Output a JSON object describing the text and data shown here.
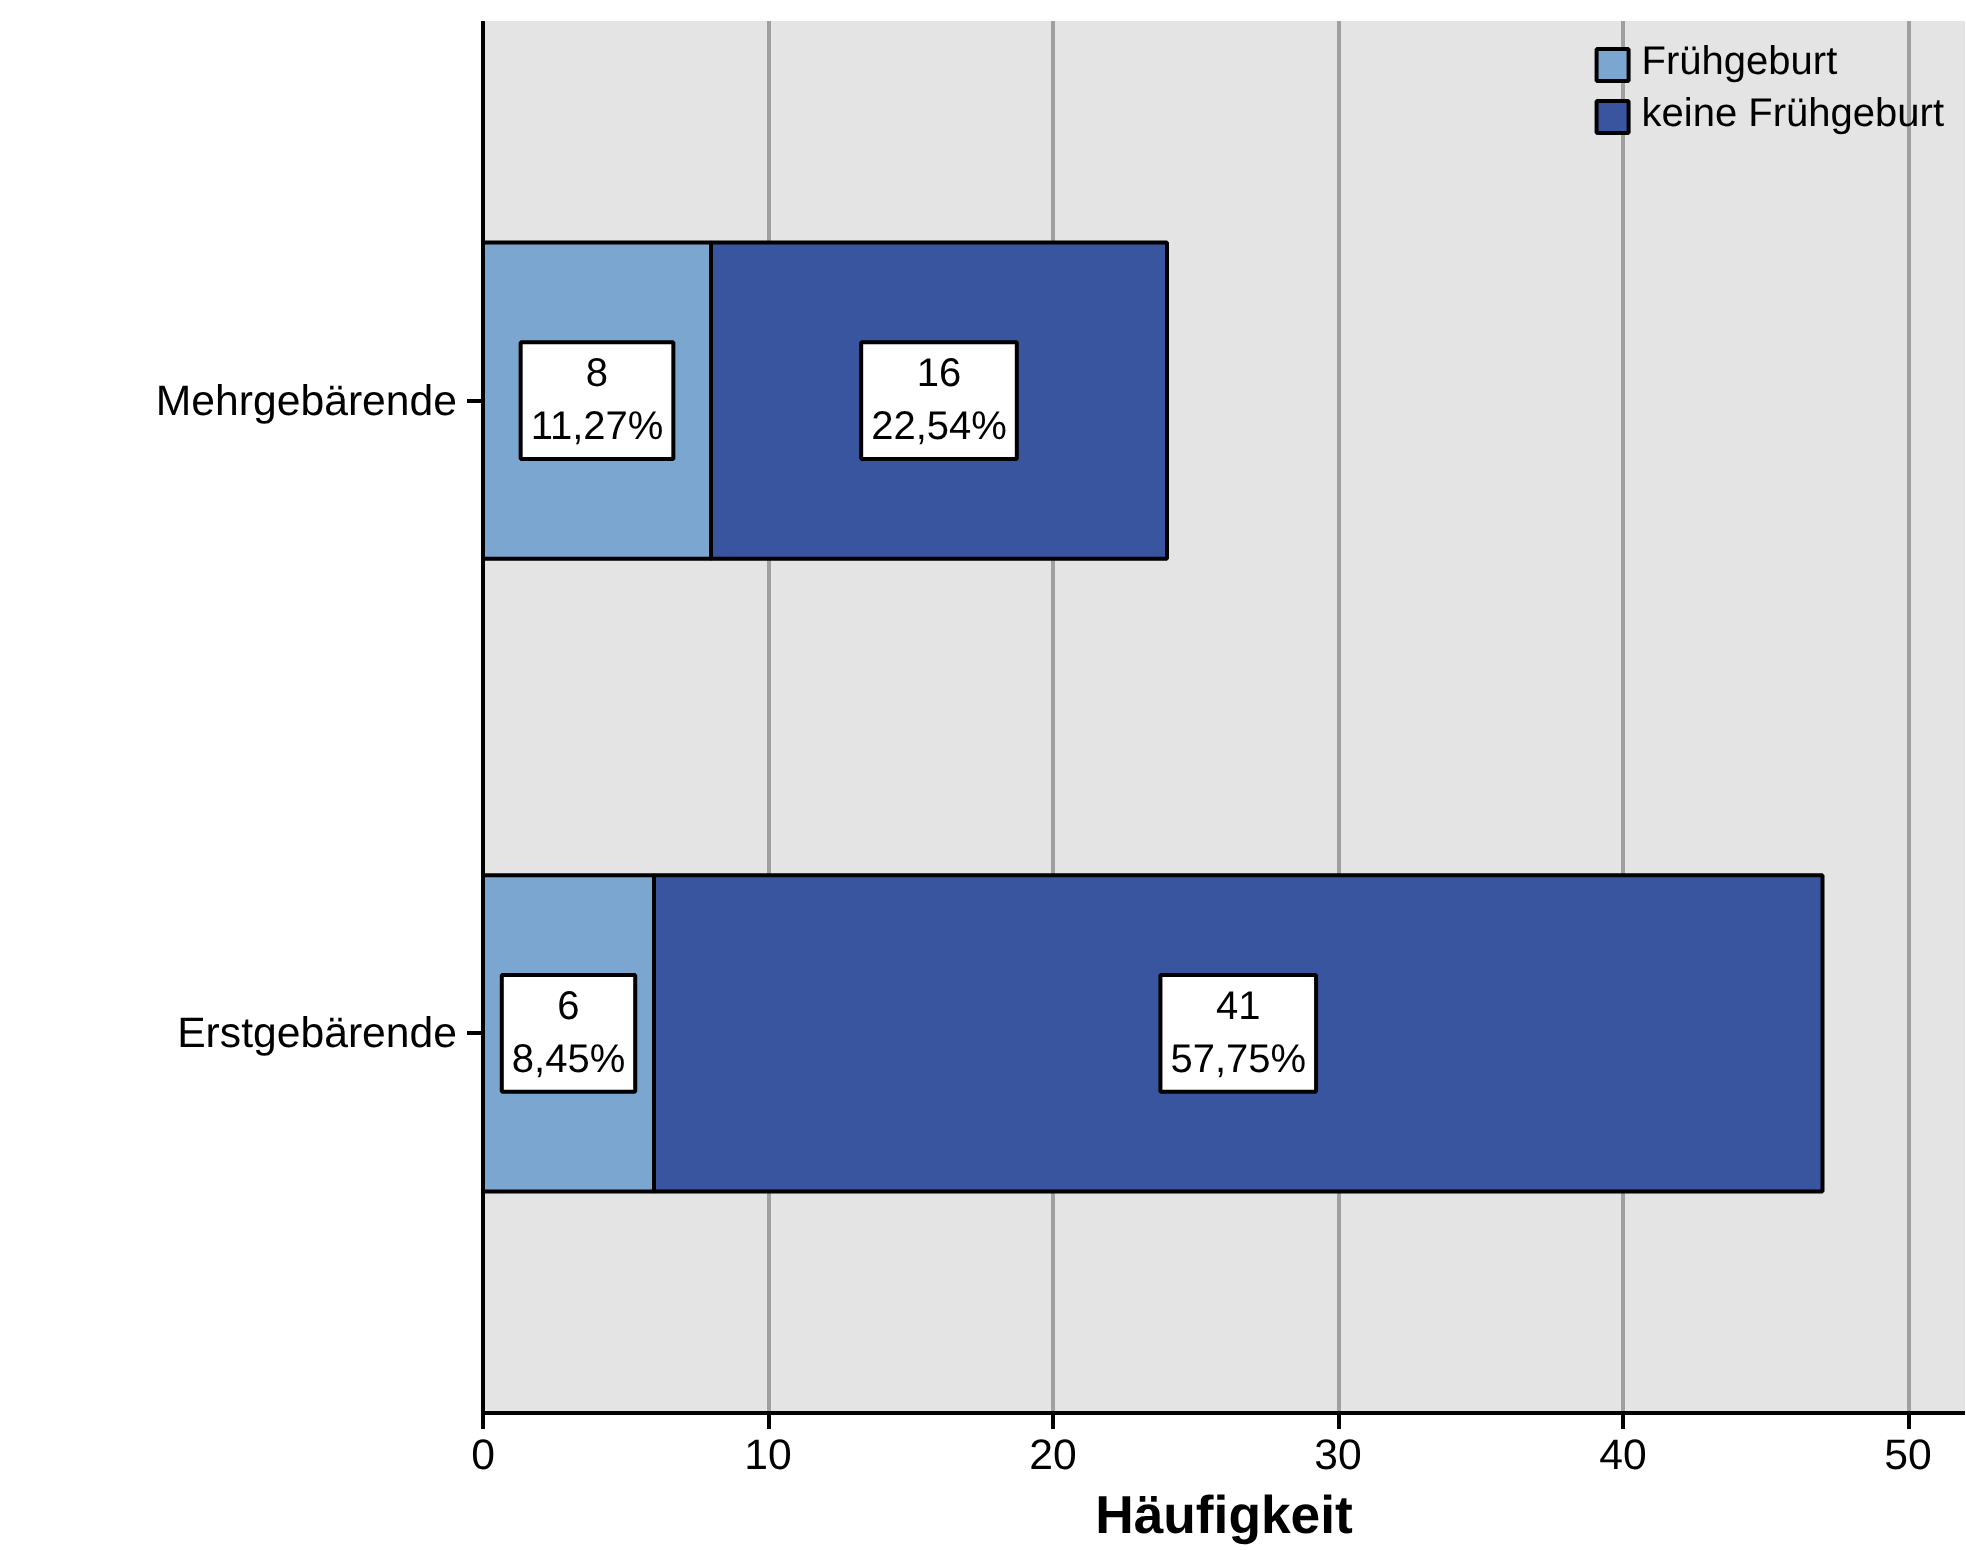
{
  "chart_data": {
    "type": "bar",
    "orientation": "horizontal",
    "stacked": true,
    "xlabel": "Häufigkeit",
    "categories": [
      "Mehrgebärende",
      "Erstgebärende"
    ],
    "series": [
      {
        "name": "Frühgeburt",
        "color": "#7aa6d0",
        "values": [
          8,
          6
        ],
        "value_labels": [
          "8\n11,27%",
          "6\n8,45%"
        ]
      },
      {
        "name": "keine Frühgeburt",
        "color": "#3a55a0",
        "values": [
          16,
          41
        ],
        "value_labels": [
          "16\n22,54%",
          "41\n57,75%"
        ]
      }
    ],
    "xlim": [
      0,
      52
    ],
    "xticks": [
      0,
      10,
      20,
      30,
      40,
      50
    ],
    "grid": "x",
    "legend": "top right"
  }
}
